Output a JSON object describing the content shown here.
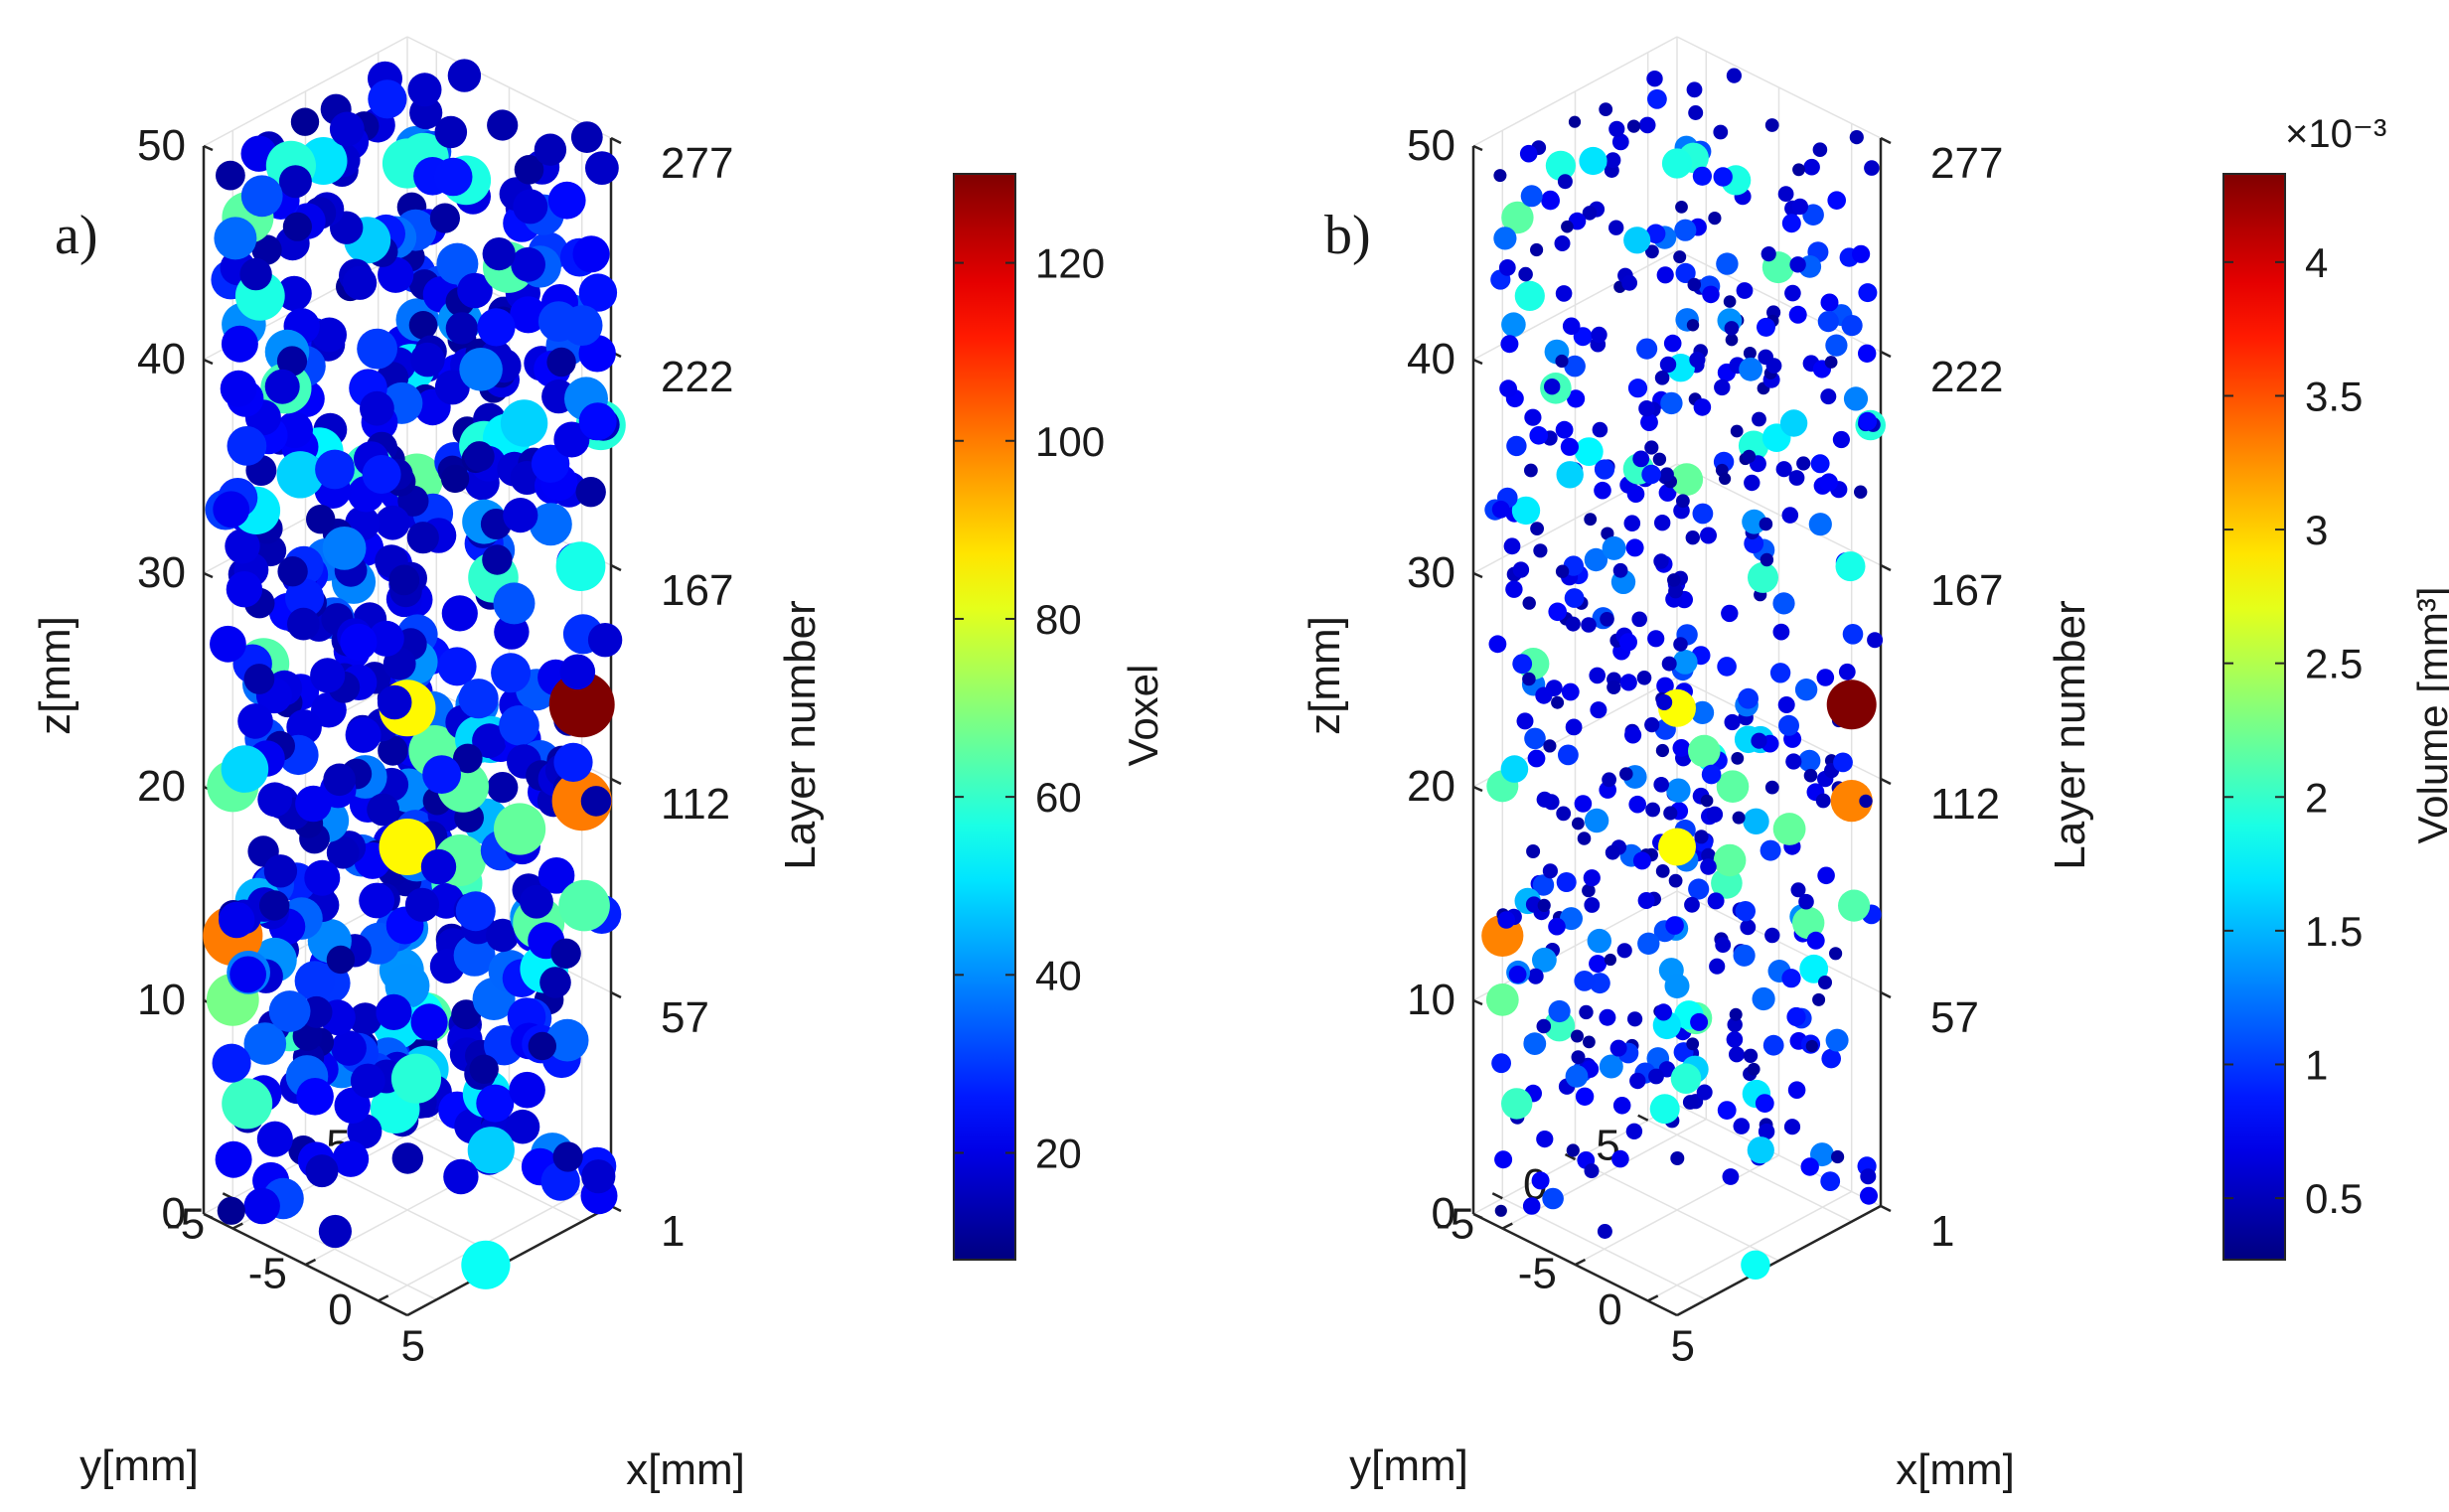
{
  "figure": {
    "panels": [
      {
        "id": "a",
        "label": "a)",
        "z_ticks": [
          "0",
          "10",
          "20",
          "30",
          "40",
          "50"
        ],
        "layer_ticks": [
          "1",
          "57",
          "112",
          "167",
          "222",
          "277"
        ],
        "y_ticks": [
          "5",
          "0",
          "-5"
        ],
        "x_ticks": [
          "-5",
          "0",
          "5"
        ],
        "zlabel": "z[mm]",
        "ylabel": "y[mm]",
        "xlabel": "x[mm]",
        "layer_label": "Layer number",
        "colorbar": {
          "label": "Voxel",
          "ticks": [
            "20",
            "40",
            "60",
            "80",
            "100",
            "120"
          ],
          "min": 8,
          "max": 130,
          "exponent": ""
        }
      },
      {
        "id": "b",
        "label": "b)",
        "z_ticks": [
          "0",
          "10",
          "20",
          "30",
          "40",
          "50"
        ],
        "layer_ticks": [
          "1",
          "57",
          "112",
          "167",
          "222",
          "277"
        ],
        "y_ticks": [
          "5",
          "0",
          "-5"
        ],
        "x_ticks": [
          "-5",
          "0",
          "5"
        ],
        "zlabel": "z[mm]",
        "ylabel": "y[mm]",
        "xlabel": "x[mm]",
        "layer_label": "Layer number",
        "colorbar": {
          "label": "Volume [mm³]",
          "ticks": [
            "0.5",
            "1",
            "1.5",
            "2",
            "2.5",
            "3",
            "3.5",
            "4"
          ],
          "min": 0.27,
          "max": 4.33,
          "exponent": "×10⁻³"
        }
      }
    ]
  },
  "chart_data": [
    {
      "type": "scatter",
      "subtype": "3d-scatter",
      "title": "a)",
      "xlabel": "x[mm]",
      "ylabel": "y[mm]",
      "zlabel": "z[mm]",
      "secondary_zlabel": "Layer number",
      "xlim": [
        -7,
        7
      ],
      "ylim": [
        -7,
        7
      ],
      "zlim": [
        0,
        50
      ],
      "colorbar_label": "Voxel",
      "color_range": [
        8,
        130
      ],
      "colormap": "jet",
      "marker_size_encodes": "Voxel",
      "notable_points": [
        {
          "x": 6,
          "y": 6,
          "z": 23.5,
          "value": 130
        },
        {
          "x": 0,
          "y": 0,
          "z": 23.5,
          "value": 85
        },
        {
          "x": 0,
          "y": 0,
          "z": 17,
          "value": 85
        },
        {
          "x": -6,
          "y": -6,
          "z": 13,
          "value": 100
        },
        {
          "x": 6,
          "y": 6,
          "z": 19,
          "value": 100
        },
        {
          "x": -6,
          "y": -6,
          "z": 10,
          "value": 68
        },
        {
          "x": -6,
          "y": -6,
          "z": 20,
          "value": 65
        },
        {
          "x": -4,
          "y": -4,
          "z": 49,
          "value": 58
        },
        {
          "x": 0,
          "y": 0,
          "z": 49,
          "value": 58
        }
      ]
    },
    {
      "type": "scatter",
      "subtype": "3d-scatter",
      "title": "b)",
      "xlabel": "x[mm]",
      "ylabel": "y[mm]",
      "zlabel": "z[mm]",
      "secondary_zlabel": "Layer number",
      "xlim": [
        -7,
        7
      ],
      "ylim": [
        -7,
        7
      ],
      "zlim": [
        0,
        50
      ],
      "colorbar_label": "Volume [mm³]",
      "colorbar_exponent": "×10⁻³",
      "color_range": [
        0.27,
        4.33
      ],
      "colormap": "jet",
      "marker_size_encodes": "Volume",
      "notable_points": [
        {
          "x": 6,
          "y": 6,
          "z": 23.5,
          "value": 4.33
        },
        {
          "x": 0,
          "y": 0,
          "z": 23.5,
          "value": 2.8
        },
        {
          "x": 0,
          "y": 0,
          "z": 17,
          "value": 2.8
        },
        {
          "x": -6,
          "y": -6,
          "z": 13,
          "value": 3.3
        },
        {
          "x": 6,
          "y": 6,
          "z": 19,
          "value": 3.3
        },
        {
          "x": -6,
          "y": -6,
          "z": 10,
          "value": 2.2
        },
        {
          "x": -6,
          "y": -6,
          "z": 20,
          "value": 2.1
        },
        {
          "x": -4,
          "y": -4,
          "z": 49,
          "value": 1.9
        },
        {
          "x": 0,
          "y": 0,
          "z": 49,
          "value": 1.9
        }
      ]
    }
  ]
}
